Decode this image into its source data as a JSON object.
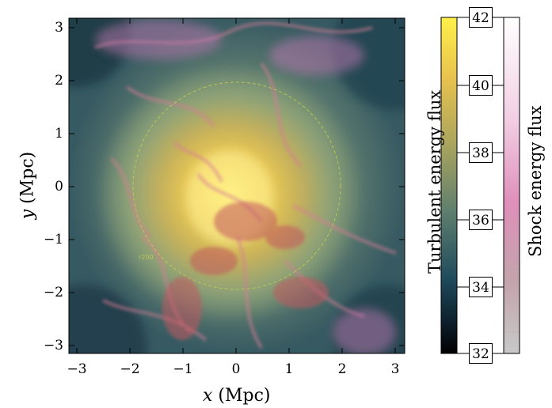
{
  "plot": {
    "x_axis_label_var": "x",
    "x_axis_label_unit": "(Mpc)",
    "y_axis_label_var": "y",
    "y_axis_label_unit": "(Mpc)",
    "x_ticks": [
      "−3",
      "−2",
      "−1",
      "0",
      "1",
      "2",
      "3"
    ],
    "y_ticks": [
      "3",
      "2",
      "1",
      "0",
      "−1",
      "−2",
      "−3"
    ],
    "circle_label": "r200"
  },
  "colorbar_turbulent": {
    "title": "Turbulent energy flux",
    "ticks": [
      "42",
      "40",
      "38",
      "36",
      "34",
      "32"
    ],
    "colors": [
      "#fff04a",
      "#e8c24e",
      "#a9a45e",
      "#5d7e6e",
      "#1e4a5c",
      "#0c1a26",
      "#000000"
    ]
  },
  "colorbar_shock": {
    "title": "Shock energy flux",
    "colors": [
      "#ffffff",
      "#f2cfe4",
      "#df8fbb",
      "#b66a86",
      "#8b5560",
      "#c8c8c8"
    ]
  }
}
